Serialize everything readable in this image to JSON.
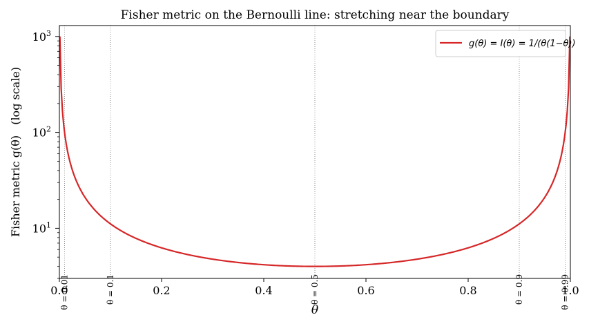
{
  "chart_data": {
    "type": "line",
    "title": "Fisher metric on the Bernoulli line: stretching near the boundary",
    "xlabel": "θ",
    "ylabel_main": "Fisher metric g(θ)",
    "ylabel_suffix": "(log scale)",
    "xlim": [
      0,
      1
    ],
    "ylim": [
      3,
      1300
    ],
    "yscale": "log",
    "x_ticks": [
      0.0,
      0.2,
      0.4,
      0.6,
      0.8,
      1.0
    ],
    "x_tick_labels": [
      "0.0",
      "0.2",
      "0.4",
      "0.6",
      "0.8",
      "1.0"
    ],
    "y_ticks": [
      10,
      100,
      1000
    ],
    "y_tick_labels": [
      "10",
      "10",
      "10"
    ],
    "y_tick_exponents": [
      "1",
      "2",
      "3"
    ],
    "grid": false,
    "legend_position": "top-right",
    "series": [
      {
        "name": "g(θ) = I(θ) = 1/(θ(1−θ))",
        "formula": "1/(x*(1-x))",
        "x_range": [
          0.001,
          0.999
        ],
        "color": "#d62728"
      }
    ],
    "vertical_lines": [
      {
        "x": 0.01,
        "label": "θ = 0.01"
      },
      {
        "x": 0.1,
        "label": "θ = 0.1"
      },
      {
        "x": 0.5,
        "label": "θ = 0.5"
      },
      {
        "x": 0.9,
        "label": "θ = 0.9"
      },
      {
        "x": 0.99,
        "label": "θ = 0.99"
      }
    ]
  }
}
